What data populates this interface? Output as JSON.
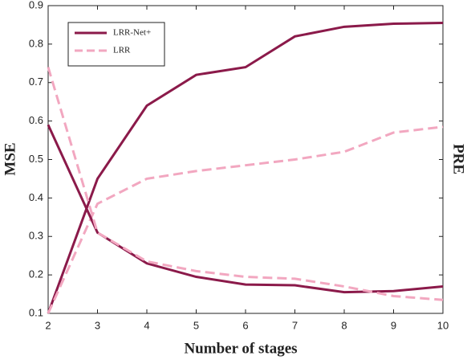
{
  "chart_data": {
    "type": "line",
    "x_label": "Number of stages",
    "y_label": "MSE",
    "y2_label": "PRE",
    "x": [
      2,
      3,
      4,
      5,
      6,
      7,
      8,
      9,
      10
    ],
    "xlim": [
      2,
      10
    ],
    "xticks": [
      2,
      3,
      4,
      5,
      6,
      7,
      8,
      9,
      10
    ],
    "ylim": [
      0.1,
      0.9
    ],
    "yticks": [
      0.1,
      0.2,
      0.3,
      0.4,
      0.5,
      0.6,
      0.7,
      0.8,
      0.9
    ],
    "legend": "upper left",
    "series": [
      {
        "name": "LRR-Net+",
        "color": "#8b1a4a",
        "dashed": false,
        "values": [
          0.1,
          0.45,
          0.64,
          0.72,
          0.74,
          0.82,
          0.845,
          0.853,
          0.855
        ]
      },
      {
        "name": "LRR",
        "color": "#f2a7c0",
        "dashed": true,
        "values": [
          0.1,
          0.385,
          0.45,
          0.47,
          0.485,
          0.5,
          0.52,
          0.57,
          0.585
        ]
      },
      {
        "color": "#8b1a4a",
        "dashed": false,
        "values": [
          0.59,
          0.31,
          0.23,
          0.195,
          0.175,
          0.173,
          0.155,
          0.158,
          0.17
        ]
      },
      {
        "color": "#f2a7c0",
        "dashed": true,
        "values": [
          0.74,
          0.31,
          0.235,
          0.21,
          0.195,
          0.19,
          0.17,
          0.145,
          0.135
        ]
      }
    ]
  }
}
